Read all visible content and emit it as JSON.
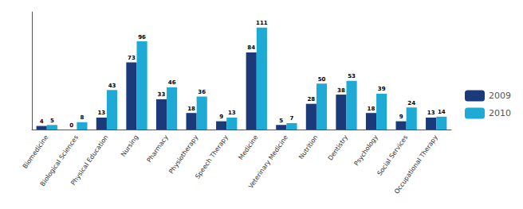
{
  "chart_data": {
    "type": "bar",
    "categories": [
      "Biomedicine",
      "Biological Sciences",
      "Physical Education",
      "Nursing",
      "Pharmacy",
      "Physiotherapy",
      "Speech Therapy",
      "Medicine",
      "Veterinary Medicine",
      "Nutrition",
      "Dentistry",
      "Psychology",
      "Social Services",
      "Occupational Therapy"
    ],
    "series": [
      {
        "name": "2009",
        "color": "#1B3A7A",
        "values": [
          4,
          0,
          13,
          73,
          33,
          18,
          9,
          84,
          5,
          28,
          38,
          18,
          9,
          13
        ]
      },
      {
        "name": "2010",
        "color": "#1EAAD4",
        "values": [
          5,
          8,
          43,
          96,
          46,
          36,
          13,
          111,
          7,
          50,
          53,
          39,
          24,
          14
        ]
      }
    ],
    "ylim": [
      0,
      128
    ],
    "data_labels": true,
    "tick_labels": "x",
    "grid": false,
    "legend": "right"
  }
}
